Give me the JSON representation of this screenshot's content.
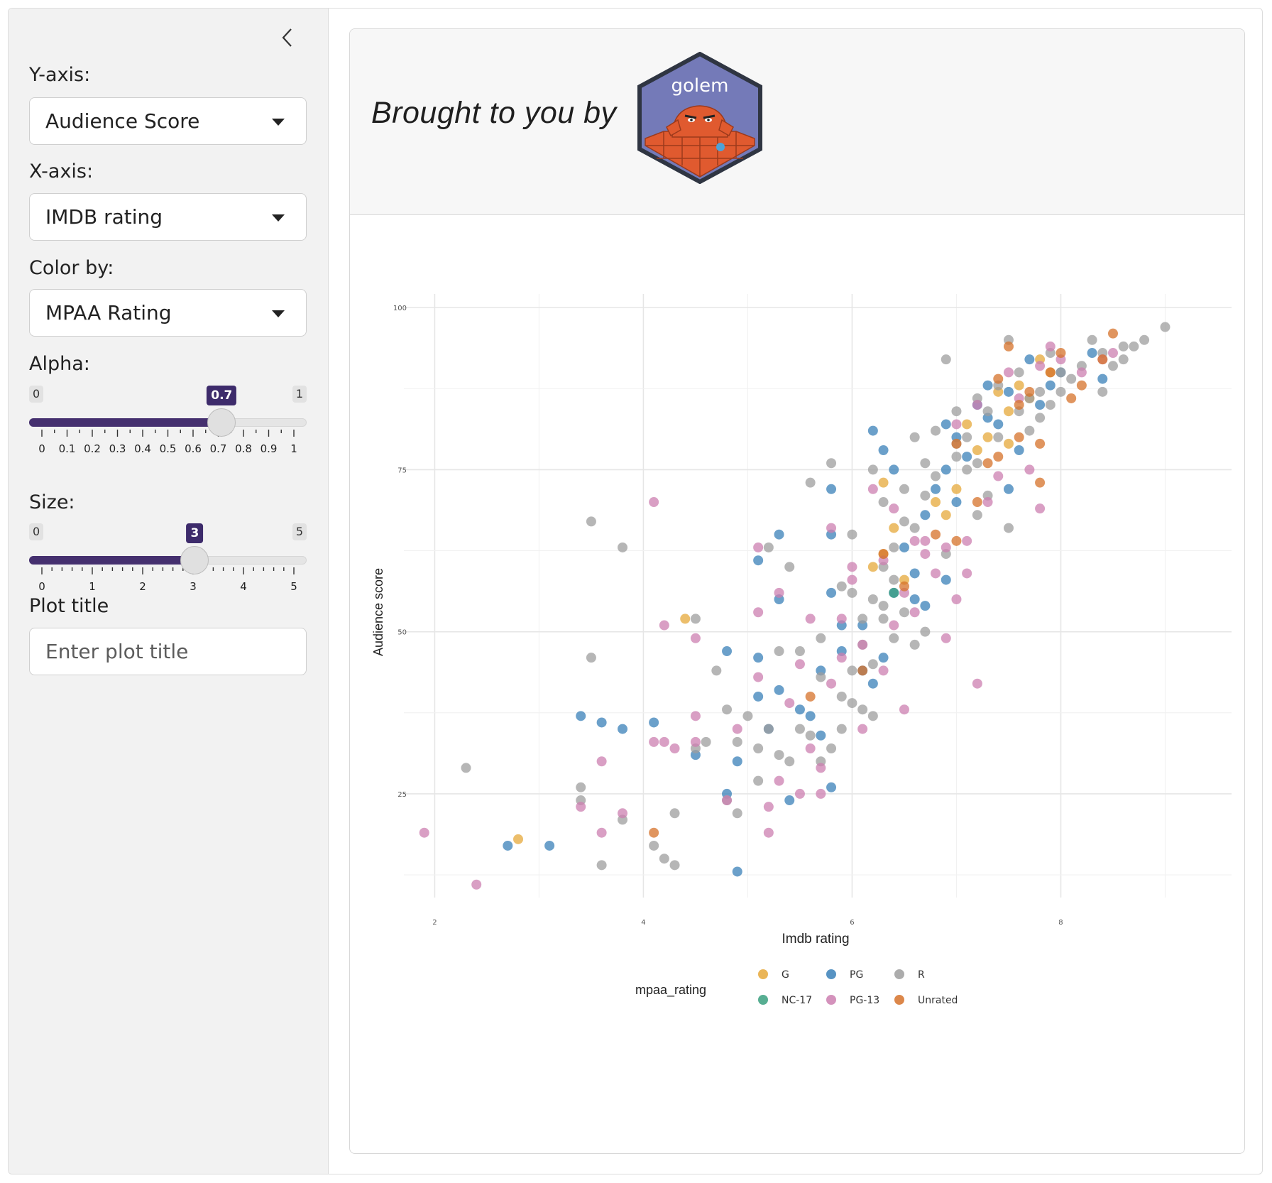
{
  "sidebar": {
    "y_axis": {
      "label": "Y-axis:",
      "value": "Audience Score"
    },
    "x_axis": {
      "label": "X-axis:",
      "value": "IMDB rating"
    },
    "color_by": {
      "label": "Color by:",
      "value": "MPAA Rating"
    },
    "alpha": {
      "label": "Alpha:",
      "min": "0",
      "max": "1",
      "value": "0.7",
      "fraction": 0.7,
      "ticks": [
        "0",
        "0.1",
        "0.2",
        "0.3",
        "0.4",
        "0.5",
        "0.6",
        "0.7",
        "0.8",
        "0.9",
        "1"
      ]
    },
    "size": {
      "label": "Size:",
      "min": "0",
      "max": "5",
      "value": "3",
      "fraction": 0.6,
      "ticks": [
        "0",
        "1",
        "2",
        "3",
        "4",
        "5"
      ]
    },
    "plot_title": {
      "label": "Plot title",
      "placeholder": "Enter plot title"
    }
  },
  "header": {
    "text": "Brought to you by",
    "logo_text": "golem"
  },
  "icons": {
    "collapse": "chevron-left-icon",
    "logo": "golem-hex-logo"
  },
  "chart_data": {
    "type": "scatter",
    "xlabel": "Imdb rating",
    "ylabel": "Audience score",
    "xlim": [
      1.8,
      9.5
    ],
    "ylim": [
      9,
      101
    ],
    "xticks": [
      2,
      4,
      6,
      8
    ],
    "yticks": [
      25,
      50,
      75,
      100
    ],
    "grid": true,
    "legend": {
      "title": "mpaa_rating",
      "position": "bottom",
      "entries": [
        {
          "name": "G",
          "color": "#e6a83a"
        },
        {
          "name": "PG",
          "color": "#3a80b8"
        },
        {
          "name": "R",
          "color": "#9e9e9e"
        },
        {
          "name": "NC-17",
          "color": "#3aa07f"
        },
        {
          "name": "PG-13",
          "color": "#cc7fb0"
        },
        {
          "name": "Unrated",
          "color": "#d6722a"
        }
      ]
    },
    "series": [
      {
        "name": "G",
        "points": [
          [
            2.8,
            18
          ],
          [
            4.4,
            52
          ],
          [
            6.3,
            73
          ],
          [
            6.3,
            62
          ],
          [
            6.4,
            66
          ],
          [
            6.8,
            70
          ],
          [
            6.9,
            68
          ],
          [
            7.1,
            82
          ],
          [
            7.3,
            80
          ],
          [
            7.4,
            87
          ],
          [
            7.5,
            84
          ],
          [
            7.6,
            88
          ],
          [
            7.8,
            92
          ],
          [
            7.9,
            90
          ],
          [
            6.2,
            60
          ],
          [
            6.5,
            58
          ],
          [
            7.0,
            72
          ],
          [
            7.2,
            78
          ],
          [
            7.5,
            79
          ],
          [
            7.7,
            86
          ]
        ]
      },
      {
        "name": "PG",
        "points": [
          [
            2.7,
            17
          ],
          [
            3.1,
            17
          ],
          [
            3.4,
            37
          ],
          [
            3.6,
            36
          ],
          [
            3.8,
            35
          ],
          [
            4.1,
            36
          ],
          [
            4.5,
            31
          ],
          [
            4.8,
            25
          ],
          [
            4.9,
            30
          ],
          [
            4.9,
            13
          ],
          [
            4.8,
            47
          ],
          [
            5.1,
            46
          ],
          [
            5.1,
            40
          ],
          [
            5.3,
            41
          ],
          [
            5.5,
            38
          ],
          [
            5.2,
            35
          ],
          [
            5.4,
            24
          ],
          [
            5.6,
            37
          ],
          [
            5.7,
            34
          ],
          [
            5.8,
            26
          ],
          [
            5.9,
            51
          ],
          [
            5.8,
            56
          ],
          [
            5.8,
            65
          ],
          [
            5.8,
            72
          ],
          [
            5.3,
            55
          ],
          [
            5.3,
            65
          ],
          [
            5.1,
            61
          ],
          [
            5.7,
            44
          ],
          [
            5.9,
            47
          ],
          [
            6.1,
            51
          ],
          [
            6.2,
            42
          ],
          [
            6.2,
            81
          ],
          [
            6.3,
            78
          ],
          [
            6.4,
            75
          ],
          [
            6.5,
            63
          ],
          [
            6.6,
            59
          ],
          [
            6.6,
            55
          ],
          [
            6.7,
            54
          ],
          [
            6.7,
            68
          ],
          [
            6.8,
            72
          ],
          [
            6.9,
            58
          ],
          [
            6.9,
            82
          ],
          [
            7.0,
            80
          ],
          [
            7.0,
            70
          ],
          [
            7.2,
            85
          ],
          [
            7.3,
            88
          ],
          [
            7.4,
            82
          ],
          [
            7.5,
            87
          ],
          [
            7.6,
            78
          ],
          [
            7.7,
            92
          ],
          [
            7.8,
            85
          ],
          [
            7.9,
            88
          ],
          [
            8.0,
            90
          ],
          [
            8.3,
            93
          ],
          [
            8.4,
            89
          ],
          [
            6.1,
            44
          ],
          [
            6.3,
            46
          ],
          [
            6.4,
            56
          ],
          [
            6.9,
            75
          ],
          [
            7.1,
            77
          ],
          [
            7.3,
            83
          ],
          [
            7.5,
            72
          ]
        ]
      },
      {
        "name": "R",
        "points": [
          [
            2.3,
            29
          ],
          [
            3.4,
            26
          ],
          [
            3.4,
            24
          ],
          [
            3.5,
            46
          ],
          [
            3.6,
            14
          ],
          [
            3.8,
            21
          ],
          [
            3.5,
            67
          ],
          [
            3.8,
            63
          ],
          [
            4.1,
            17
          ],
          [
            4.2,
            15
          ],
          [
            4.3,
            14
          ],
          [
            4.3,
            22
          ],
          [
            4.5,
            32
          ],
          [
            4.5,
            52
          ],
          [
            4.6,
            33
          ],
          [
            4.7,
            44
          ],
          [
            4.8,
            24
          ],
          [
            4.8,
            38
          ],
          [
            4.9,
            22
          ],
          [
            4.9,
            33
          ],
          [
            5.0,
            37
          ],
          [
            5.1,
            27
          ],
          [
            5.1,
            32
          ],
          [
            5.2,
            35
          ],
          [
            5.2,
            63
          ],
          [
            5.3,
            31
          ],
          [
            5.3,
            47
          ],
          [
            5.4,
            30
          ],
          [
            5.4,
            60
          ],
          [
            5.5,
            35
          ],
          [
            5.5,
            47
          ],
          [
            5.6,
            73
          ],
          [
            5.6,
            34
          ],
          [
            5.7,
            43
          ],
          [
            5.7,
            49
          ],
          [
            5.7,
            30
          ],
          [
            5.8,
            32
          ],
          [
            5.8,
            76
          ],
          [
            5.9,
            40
          ],
          [
            5.9,
            57
          ],
          [
            6.0,
            65
          ],
          [
            6.0,
            44
          ],
          [
            6.1,
            52
          ],
          [
            6.2,
            37
          ],
          [
            6.2,
            75
          ],
          [
            6.3,
            52
          ],
          [
            6.3,
            70
          ],
          [
            6.4,
            58
          ],
          [
            6.5,
            67
          ],
          [
            6.6,
            80
          ],
          [
            6.6,
            48
          ],
          [
            6.7,
            71
          ],
          [
            6.8,
            74
          ],
          [
            6.8,
            81
          ],
          [
            6.9,
            62
          ],
          [
            6.9,
            92
          ],
          [
            7.0,
            84
          ],
          [
            7.0,
            79
          ],
          [
            7.1,
            75
          ],
          [
            7.2,
            86
          ],
          [
            7.2,
            68
          ],
          [
            7.3,
            71
          ],
          [
            7.4,
            80
          ],
          [
            7.5,
            95
          ],
          [
            7.5,
            66
          ],
          [
            7.6,
            90
          ],
          [
            7.7,
            86
          ],
          [
            7.8,
            83
          ],
          [
            7.8,
            87
          ],
          [
            7.9,
            93
          ],
          [
            8.0,
            90
          ],
          [
            8.1,
            89
          ],
          [
            8.2,
            91
          ],
          [
            8.3,
            95
          ],
          [
            8.4,
            93
          ],
          [
            8.5,
            91
          ],
          [
            8.6,
            94
          ],
          [
            8.7,
            94
          ],
          [
            8.8,
            95
          ],
          [
            9.0,
            97
          ],
          [
            8.6,
            92
          ],
          [
            8.4,
            87
          ],
          [
            6.0,
            56
          ],
          [
            6.1,
            48
          ],
          [
            6.2,
            55
          ],
          [
            6.3,
            60
          ],
          [
            6.4,
            63
          ],
          [
            6.5,
            53
          ],
          [
            6.6,
            66
          ],
          [
            6.7,
            50
          ],
          [
            6.0,
            39
          ],
          [
            5.9,
            35
          ],
          [
            6.1,
            38
          ],
          [
            6.2,
            45
          ],
          [
            6.3,
            54
          ],
          [
            6.4,
            49
          ],
          [
            6.5,
            72
          ],
          [
            6.7,
            76
          ],
          [
            7.0,
            77
          ],
          [
            7.1,
            80
          ],
          [
            7.2,
            76
          ],
          [
            7.3,
            84
          ],
          [
            7.4,
            88
          ],
          [
            7.6,
            84
          ],
          [
            7.7,
            81
          ],
          [
            7.9,
            85
          ],
          [
            8.0,
            87
          ]
        ]
      },
      {
        "name": "NC-17",
        "points": [
          [
            6.4,
            56
          ]
        ]
      },
      {
        "name": "PG-13",
        "points": [
          [
            1.9,
            19
          ],
          [
            2.4,
            11
          ],
          [
            3.4,
            23
          ],
          [
            3.6,
            19
          ],
          [
            3.6,
            30
          ],
          [
            3.8,
            22
          ],
          [
            4.1,
            70
          ],
          [
            4.1,
            33
          ],
          [
            4.2,
            33
          ],
          [
            4.2,
            51
          ],
          [
            4.3,
            32
          ],
          [
            4.5,
            37
          ],
          [
            4.5,
            33
          ],
          [
            4.5,
            49
          ],
          [
            4.8,
            24
          ],
          [
            4.9,
            35
          ],
          [
            5.1,
            43
          ],
          [
            5.1,
            53
          ],
          [
            5.1,
            63
          ],
          [
            5.2,
            19
          ],
          [
            5.2,
            23
          ],
          [
            5.3,
            56
          ],
          [
            5.3,
            27
          ],
          [
            5.4,
            39
          ],
          [
            5.5,
            25
          ],
          [
            5.5,
            45
          ],
          [
            5.6,
            52
          ],
          [
            5.6,
            32
          ],
          [
            5.7,
            25
          ],
          [
            5.7,
            29
          ],
          [
            5.8,
            42
          ],
          [
            5.8,
            66
          ],
          [
            5.9,
            46
          ],
          [
            6.0,
            60
          ],
          [
            6.1,
            48
          ],
          [
            6.1,
            35
          ],
          [
            6.2,
            72
          ],
          [
            6.3,
            44
          ],
          [
            6.3,
            61
          ],
          [
            6.4,
            69
          ],
          [
            6.4,
            51
          ],
          [
            6.5,
            38
          ],
          [
            6.5,
            56
          ],
          [
            6.6,
            53
          ],
          [
            6.7,
            64
          ],
          [
            6.7,
            62
          ],
          [
            6.8,
            59
          ],
          [
            6.9,
            49
          ],
          [
            7.0,
            82
          ],
          [
            7.1,
            64
          ],
          [
            7.1,
            59
          ],
          [
            7.2,
            42
          ],
          [
            7.2,
            85
          ],
          [
            7.3,
            70
          ],
          [
            7.4,
            74
          ],
          [
            7.5,
            90
          ],
          [
            7.6,
            86
          ],
          [
            7.7,
            75
          ],
          [
            7.8,
            69
          ],
          [
            7.8,
            91
          ],
          [
            7.9,
            94
          ],
          [
            8.0,
            92
          ],
          [
            8.2,
            90
          ],
          [
            8.4,
            92
          ],
          [
            8.5,
            93
          ],
          [
            6.6,
            64
          ],
          [
            6.9,
            63
          ],
          [
            7.0,
            55
          ],
          [
            5.9,
            52
          ],
          [
            6.0,
            58
          ]
        ]
      },
      {
        "name": "Unrated",
        "points": [
          [
            4.1,
            19
          ],
          [
            5.6,
            40
          ],
          [
            6.1,
            44
          ],
          [
            6.3,
            62
          ],
          [
            6.5,
            57
          ],
          [
            6.8,
            65
          ],
          [
            7.0,
            79
          ],
          [
            7.2,
            70
          ],
          [
            7.3,
            76
          ],
          [
            7.4,
            89
          ],
          [
            7.5,
            94
          ],
          [
            7.6,
            80
          ],
          [
            7.7,
            87
          ],
          [
            7.8,
            73
          ],
          [
            7.9,
            90
          ],
          [
            8.0,
            93
          ],
          [
            8.1,
            86
          ],
          [
            8.2,
            88
          ],
          [
            8.4,
            92
          ],
          [
            8.5,
            96
          ],
          [
            7.0,
            64
          ],
          [
            7.4,
            77
          ],
          [
            7.6,
            85
          ],
          [
            7.8,
            79
          ]
        ]
      }
    ]
  }
}
